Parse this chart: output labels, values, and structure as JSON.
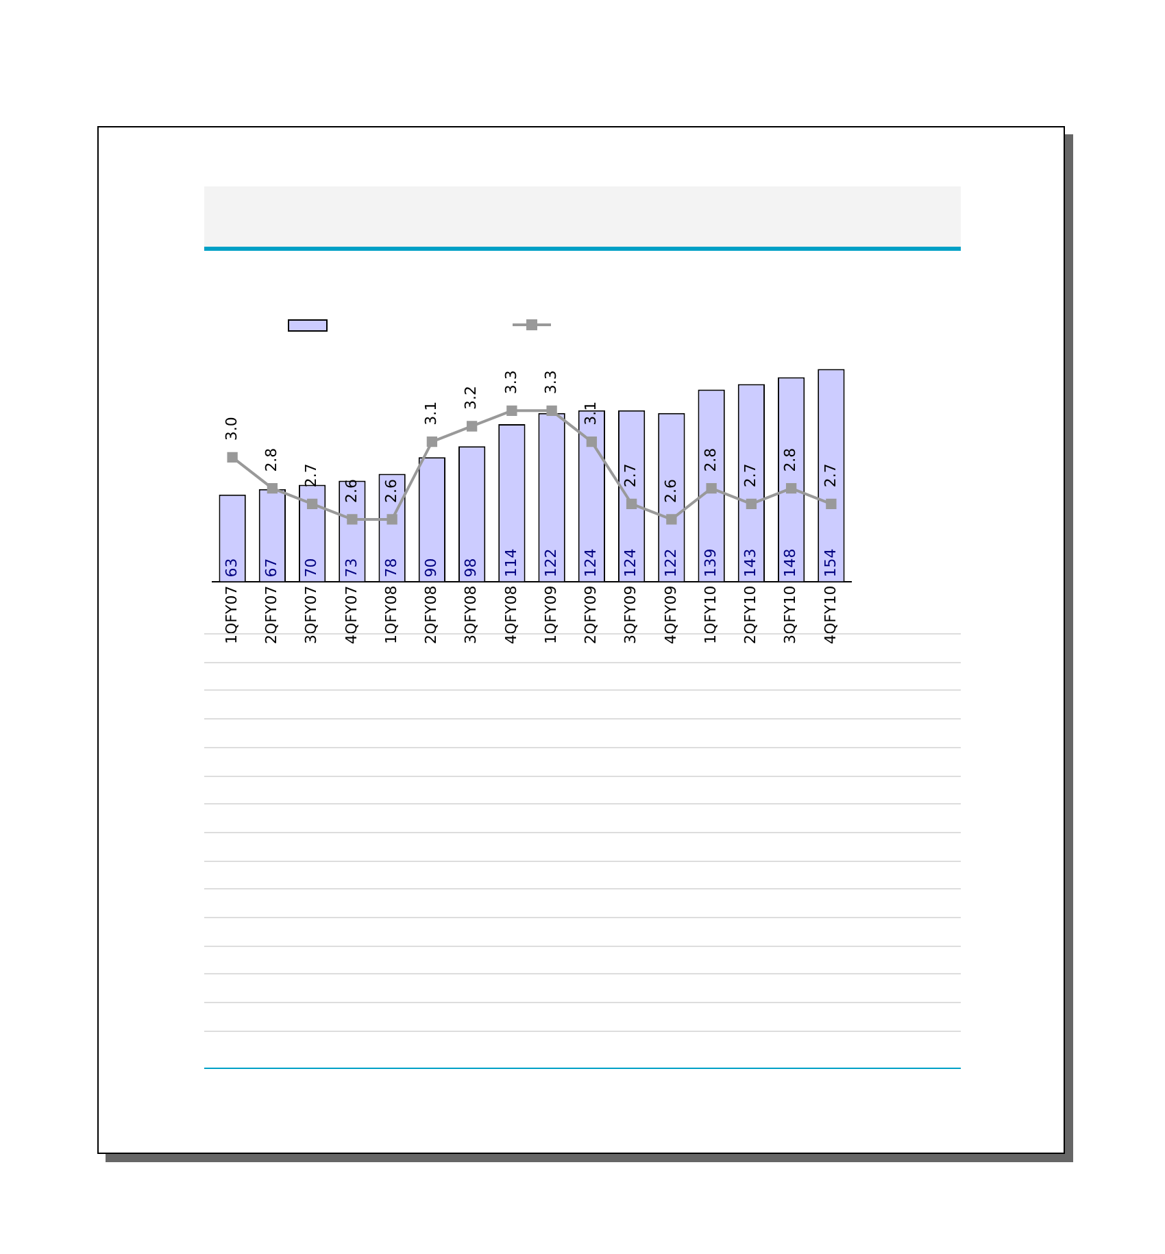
{
  "chart_data": {
    "type": "bar",
    "categories": [
      "1QFY07",
      "2QFY07",
      "3QFY07",
      "4QFY07",
      "1QFY08",
      "2QFY08",
      "3QFY08",
      "4QFY08",
      "1QFY09",
      "2QFY09",
      "3QFY09",
      "4QFY09",
      "1QFY10",
      "2QFY10",
      "3QFY10",
      "4QFY10"
    ],
    "series": [
      {
        "color": "#ccccff",
        "values": [
          63,
          67,
          70,
          73,
          78,
          90,
          98,
          114,
          122,
          124,
          124,
          122,
          139,
          143,
          148,
          154
        ]
      },
      {
        "type": "line",
        "axis": "y2",
        "color": "#999999",
        "values": [
          3.0,
          2.8,
          2.7,
          2.6,
          2.6,
          3.1,
          3.2,
          3.3,
          3.3,
          3.1,
          2.7,
          2.6,
          2.8,
          2.7,
          2.8,
          2.7
        ],
        "value_labels": [
          "3.0",
          "2.8",
          "2.7",
          "2.6",
          "2.6",
          "3.1",
          "3.2",
          "3.3",
          "3.3",
          "3.1",
          "2.7",
          "2.6",
          "2.8",
          "2.7",
          "2.8",
          "2.7"
        ]
      }
    ],
    "data_labels": true,
    "marker": "square",
    "tick_labels": "x",
    "grid": false
  }
}
